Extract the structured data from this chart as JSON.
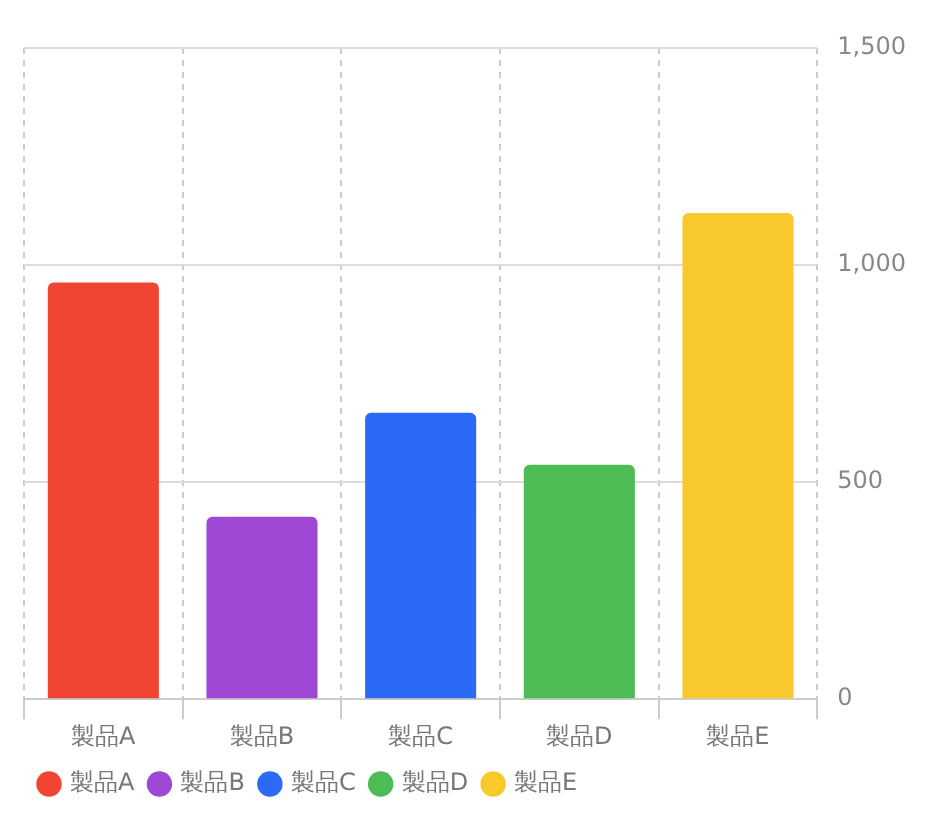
{
  "chart_data": {
    "type": "bar",
    "categories": [
      "製品A",
      "製品B",
      "製品C",
      "製品D",
      "製品E"
    ],
    "series": [
      {
        "name": "製品A",
        "color": "#ef4532",
        "values": [
          960,
          null,
          null,
          null,
          null
        ]
      },
      {
        "name": "製品B",
        "color": "#9f48d6",
        "values": [
          null,
          420,
          null,
          null,
          null
        ]
      },
      {
        "name": "製品C",
        "color": "#2b6af7",
        "values": [
          null,
          null,
          660,
          null,
          null
        ]
      },
      {
        "name": "製品D",
        "color": "#4dbc55",
        "values": [
          null,
          null,
          null,
          540,
          null
        ]
      },
      {
        "name": "製品E",
        "color": "#f8c82c",
        "values": [
          null,
          null,
          null,
          null,
          1120
        ]
      }
    ],
    "ylim": [
      0,
      1500
    ],
    "yticks": [
      0,
      {
        "value": 500,
        "label": "500"
      },
      {
        "value": 1000,
        "label": "1,000"
      },
      {
        "value": 1500,
        "label": "1,500"
      }
    ],
    "grid": true,
    "legend": "bottom left"
  }
}
